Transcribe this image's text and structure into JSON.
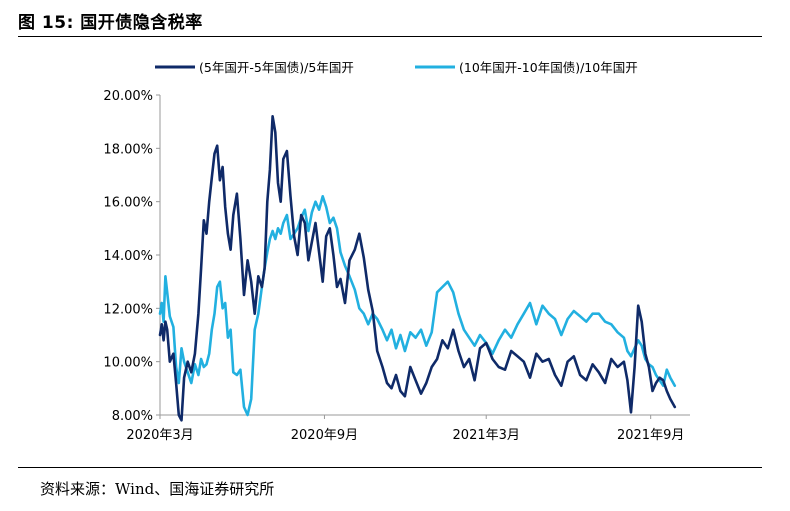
{
  "figure": {
    "label": "图 15:",
    "title": "国开债隐含税率"
  },
  "source": {
    "label": "资料来源：",
    "text": "Wind、国海证券研究所"
  },
  "colors": {
    "series_5y": "#0f2a68",
    "series_10y": "#22b0e0",
    "axis": "#9a9a9a"
  },
  "chart_data": {
    "type": "line",
    "title": "",
    "xlabel": "",
    "ylabel": "",
    "ylim": [
      0.08,
      0.2
    ],
    "yticks": [
      "8.00%",
      "10.00%",
      "12.00%",
      "14.00%",
      "16.00%",
      "18.00%",
      "20.00%"
    ],
    "ytick_values": [
      0.08,
      0.1,
      0.12,
      0.14,
      0.16,
      0.18,
      0.2
    ],
    "xlim": [
      "2020-03-01",
      "2021-10-15"
    ],
    "xticks": [
      {
        "date": "2020-03-01",
        "label": "2020年3月"
      },
      {
        "date": "2020-09-01",
        "label": "2020年9月"
      },
      {
        "date": "2021-03-01",
        "label": "2021年3月"
      },
      {
        "date": "2021-09-01",
        "label": "2021年9月"
      }
    ],
    "grid": false,
    "legend": "top",
    "series": [
      {
        "name": "(5年国开-5年国债)/5年国开",
        "x": [
          "2020-03-01",
          "2020-03-03",
          "2020-03-05",
          "2020-03-07",
          "2020-03-09",
          "2020-03-12",
          "2020-03-16",
          "2020-03-19",
          "2020-03-22",
          "2020-03-25",
          "2020-03-28",
          "2020-04-01",
          "2020-04-05",
          "2020-04-09",
          "2020-04-13",
          "2020-04-16",
          "2020-04-19",
          "2020-04-22",
          "2020-04-25",
          "2020-04-28",
          "2020-05-01",
          "2020-05-04",
          "2020-05-07",
          "2020-05-10",
          "2020-05-13",
          "2020-05-16",
          "2020-05-19",
          "2020-05-22",
          "2020-05-26",
          "2020-05-30",
          "2020-06-03",
          "2020-06-07",
          "2020-06-11",
          "2020-06-15",
          "2020-06-19",
          "2020-06-23",
          "2020-06-26",
          "2020-06-29",
          "2020-07-02",
          "2020-07-05",
          "2020-07-08",
          "2020-07-11",
          "2020-07-14",
          "2020-07-17",
          "2020-07-21",
          "2020-07-25",
          "2020-07-29",
          "2020-08-02",
          "2020-08-06",
          "2020-08-10",
          "2020-08-14",
          "2020-08-18",
          "2020-08-22",
          "2020-08-26",
          "2020-08-30",
          "2020-09-03",
          "2020-09-07",
          "2020-09-11",
          "2020-09-15",
          "2020-09-19",
          "2020-09-24",
          "2020-09-29",
          "2020-10-05",
          "2020-10-10",
          "2020-10-15",
          "2020-10-20",
          "2020-10-25",
          "2020-10-30",
          "2020-11-05",
          "2020-11-10",
          "2020-11-15",
          "2020-11-20",
          "2020-11-25",
          "2020-11-30",
          "2020-12-06",
          "2020-12-12",
          "2020-12-18",
          "2020-12-24",
          "2020-12-30",
          "2021-01-05",
          "2021-01-11",
          "2021-01-17",
          "2021-01-23",
          "2021-01-29",
          "2021-02-04",
          "2021-02-10",
          "2021-02-16",
          "2021-02-22",
          "2021-03-01",
          "2021-03-08",
          "2021-03-15",
          "2021-03-22",
          "2021-03-29",
          "2021-04-05",
          "2021-04-12",
          "2021-04-19",
          "2021-04-26",
          "2021-05-03",
          "2021-05-10",
          "2021-05-17",
          "2021-05-24",
          "2021-05-31",
          "2021-06-07",
          "2021-06-14",
          "2021-06-21",
          "2021-06-28",
          "2021-07-05",
          "2021-07-12",
          "2021-07-19",
          "2021-07-26",
          "2021-08-02",
          "2021-08-06",
          "2021-08-10",
          "2021-08-14",
          "2021-08-18",
          "2021-08-22",
          "2021-08-26",
          "2021-08-30",
          "2021-09-03",
          "2021-09-07",
          "2021-09-11",
          "2021-09-15",
          "2021-09-19",
          "2021-09-23",
          "2021-09-28"
        ],
        "y": [
          0.11,
          0.114,
          0.108,
          0.115,
          0.112,
          0.1,
          0.103,
          0.092,
          0.08,
          0.078,
          0.094,
          0.1,
          0.096,
          0.103,
          0.118,
          0.135,
          0.153,
          0.148,
          0.16,
          0.169,
          0.178,
          0.181,
          0.168,
          0.173,
          0.158,
          0.148,
          0.142,
          0.155,
          0.163,
          0.146,
          0.125,
          0.138,
          0.13,
          0.118,
          0.132,
          0.128,
          0.135,
          0.16,
          0.172,
          0.192,
          0.186,
          0.167,
          0.16,
          0.176,
          0.179,
          0.162,
          0.147,
          0.14,
          0.155,
          0.152,
          0.138,
          0.145,
          0.152,
          0.141,
          0.13,
          0.147,
          0.15,
          0.14,
          0.128,
          0.131,
          0.122,
          0.138,
          0.142,
          0.148,
          0.139,
          0.127,
          0.119,
          0.104,
          0.098,
          0.092,
          0.09,
          0.095,
          0.089,
          0.087,
          0.098,
          0.093,
          0.088,
          0.092,
          0.098,
          0.101,
          0.108,
          0.105,
          0.112,
          0.104,
          0.098,
          0.101,
          0.093,
          0.105,
          0.107,
          0.101,
          0.098,
          0.097,
          0.104,
          0.102,
          0.1,
          0.094,
          0.103,
          0.1,
          0.101,
          0.095,
          0.091,
          0.1,
          0.102,
          0.095,
          0.093,
          0.099,
          0.096,
          0.092,
          0.101,
          0.098,
          0.1,
          0.093,
          0.081,
          0.098,
          0.121,
          0.115,
          0.103,
          0.098,
          0.089,
          0.092,
          0.094,
          0.093,
          0.089,
          0.086,
          0.083
        ],
        "color": "#0f2a68"
      },
      {
        "name": "(10年国开-10年国债)/10年国开",
        "x": [
          "2020-03-01",
          "2020-03-03",
          "2020-03-05",
          "2020-03-07",
          "2020-03-09",
          "2020-03-12",
          "2020-03-16",
          "2020-03-19",
          "2020-03-22",
          "2020-03-25",
          "2020-03-28",
          "2020-04-01",
          "2020-04-05",
          "2020-04-09",
          "2020-04-13",
          "2020-04-16",
          "2020-04-19",
          "2020-04-22",
          "2020-04-25",
          "2020-04-28",
          "2020-05-01",
          "2020-05-04",
          "2020-05-07",
          "2020-05-10",
          "2020-05-13",
          "2020-05-16",
          "2020-05-19",
          "2020-05-22",
          "2020-05-26",
          "2020-05-30",
          "2020-06-03",
          "2020-06-07",
          "2020-06-11",
          "2020-06-15",
          "2020-06-19",
          "2020-06-23",
          "2020-06-26",
          "2020-06-29",
          "2020-07-02",
          "2020-07-05",
          "2020-07-08",
          "2020-07-11",
          "2020-07-14",
          "2020-07-17",
          "2020-07-21",
          "2020-07-25",
          "2020-07-29",
          "2020-08-02",
          "2020-08-06",
          "2020-08-10",
          "2020-08-14",
          "2020-08-18",
          "2020-08-22",
          "2020-08-26",
          "2020-08-30",
          "2020-09-03",
          "2020-09-07",
          "2020-09-11",
          "2020-09-15",
          "2020-09-19",
          "2020-09-24",
          "2020-09-29",
          "2020-10-05",
          "2020-10-10",
          "2020-10-15",
          "2020-10-20",
          "2020-10-25",
          "2020-10-30",
          "2020-11-05",
          "2020-11-10",
          "2020-11-15",
          "2020-11-20",
          "2020-11-25",
          "2020-11-30",
          "2020-12-06",
          "2020-12-12",
          "2020-12-18",
          "2020-12-24",
          "2020-12-30",
          "2021-01-05",
          "2021-01-11",
          "2021-01-17",
          "2021-01-23",
          "2021-01-29",
          "2021-02-04",
          "2021-02-10",
          "2021-02-16",
          "2021-02-22",
          "2021-03-01",
          "2021-03-08",
          "2021-03-15",
          "2021-03-22",
          "2021-03-29",
          "2021-04-05",
          "2021-04-12",
          "2021-04-19",
          "2021-04-26",
          "2021-05-03",
          "2021-05-10",
          "2021-05-17",
          "2021-05-24",
          "2021-05-31",
          "2021-06-07",
          "2021-06-14",
          "2021-06-21",
          "2021-06-28",
          "2021-07-05",
          "2021-07-12",
          "2021-07-19",
          "2021-07-26",
          "2021-08-02",
          "2021-08-06",
          "2021-08-10",
          "2021-08-14",
          "2021-08-18",
          "2021-08-22",
          "2021-08-26",
          "2021-08-30",
          "2021-09-03",
          "2021-09-07",
          "2021-09-11",
          "2021-09-15",
          "2021-09-19",
          "2021-09-23",
          "2021-09-28"
        ],
        "y": [
          0.118,
          0.122,
          0.115,
          0.132,
          0.126,
          0.117,
          0.113,
          0.098,
          0.092,
          0.105,
          0.1,
          0.096,
          0.092,
          0.099,
          0.095,
          0.101,
          0.098,
          0.099,
          0.103,
          0.112,
          0.118,
          0.128,
          0.13,
          0.12,
          0.122,
          0.109,
          0.112,
          0.096,
          0.095,
          0.097,
          0.083,
          0.08,
          0.086,
          0.112,
          0.118,
          0.128,
          0.135,
          0.141,
          0.146,
          0.149,
          0.146,
          0.15,
          0.148,
          0.152,
          0.155,
          0.146,
          0.148,
          0.15,
          0.154,
          0.157,
          0.149,
          0.156,
          0.16,
          0.157,
          0.162,
          0.158,
          0.152,
          0.154,
          0.15,
          0.141,
          0.136,
          0.132,
          0.127,
          0.12,
          0.118,
          0.114,
          0.118,
          0.116,
          0.112,
          0.108,
          0.112,
          0.105,
          0.11,
          0.104,
          0.111,
          0.109,
          0.112,
          0.106,
          0.111,
          0.126,
          0.128,
          0.13,
          0.126,
          0.118,
          0.112,
          0.109,
          0.106,
          0.11,
          0.107,
          0.103,
          0.108,
          0.112,
          0.109,
          0.114,
          0.118,
          0.122,
          0.114,
          0.121,
          0.118,
          0.116,
          0.11,
          0.116,
          0.119,
          0.117,
          0.115,
          0.118,
          0.118,
          0.115,
          0.114,
          0.111,
          0.109,
          0.104,
          0.102,
          0.105,
          0.108,
          0.106,
          0.101,
          0.099,
          0.098,
          0.095,
          0.093,
          0.091,
          0.097,
          0.094,
          0.091
        ]
      }
    ]
  }
}
